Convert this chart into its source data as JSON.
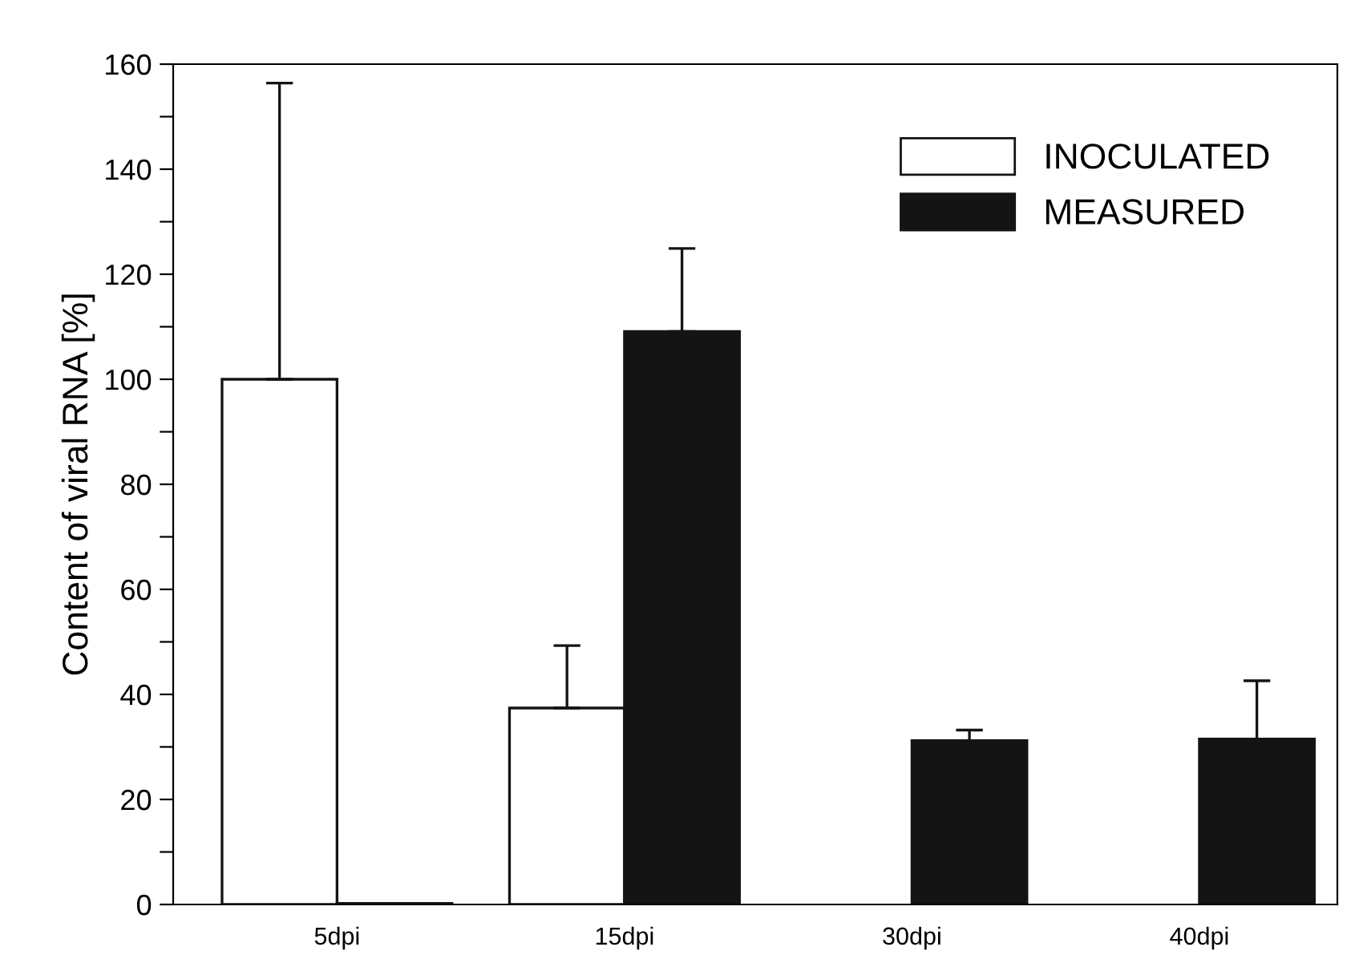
{
  "chart_data": {
    "type": "bar",
    "ylabel": "Content of viral RNA [%]",
    "categories": [
      "5dpi",
      "15dpi",
      "30dpi",
      "40dpi"
    ],
    "series": [
      {
        "name": "INOCULATED",
        "color": "#ffffff",
        "values": [
          100,
          37.4,
          null,
          null
        ],
        "errors": [
          [
            100,
            156.4
          ],
          [
            37.4,
            49.3
          ],
          null,
          null
        ]
      },
      {
        "name": "MEASURED",
        "color": "#141414",
        "values": [
          0.2,
          109.1,
          31.2,
          31.5
        ],
        "errors": [
          null,
          [
            109.1,
            124.9
          ],
          [
            31.2,
            33.2
          ],
          [
            31.5,
            42.6
          ]
        ]
      }
    ],
    "ylim": [
      0,
      160
    ],
    "yticks": [
      0,
      {
        "value": 10,
        "label": null
      },
      20,
      {
        "value": 30,
        "label": null
      },
      40,
      {
        "value": 50,
        "label": null
      },
      60,
      {
        "value": 70,
        "label": null
      },
      80,
      {
        "value": 90,
        "label": null
      },
      100,
      {
        "value": 110,
        "label": null
      },
      120,
      {
        "value": 130,
        "label": null
      },
      140,
      {
        "value": 150,
        "label": null
      },
      160
    ],
    "grid": false,
    "legend": "top right"
  }
}
